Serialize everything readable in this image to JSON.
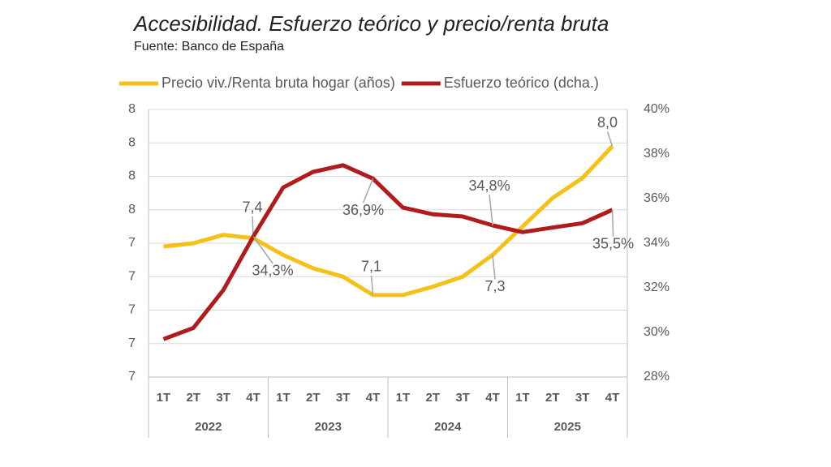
{
  "chart_data": {
    "type": "line",
    "title": "Accesibilidad. Esfuerzo teórico y precio/renta bruta",
    "subtitle": "Fuente: Banco de España",
    "categories": [
      "1T",
      "2T",
      "3T",
      "4T",
      "1T",
      "2T",
      "3T",
      "4T",
      "1T",
      "2T",
      "3T",
      "4T",
      "1T",
      "2T",
      "3T",
      "4T"
    ],
    "groups": [
      "2022",
      "2023",
      "2024",
      "2025"
    ],
    "series": [
      {
        "name": "Precio viv./Renta bruta hogar (años)",
        "color": "#f5c018",
        "values": [
          7.38,
          7.4,
          7.45,
          7.43,
          7.33,
          7.25,
          7.2,
          7.09,
          7.09,
          7.14,
          7.2,
          7.33,
          7.5,
          7.67,
          7.79,
          7.98
        ],
        "value_labels": [
          null,
          null,
          null,
          "7,4",
          null,
          null,
          null,
          "7,1",
          null,
          null,
          null,
          "7,3",
          null,
          null,
          null,
          "8,0"
        ]
      },
      {
        "name": "Esfuerzo teórico (dcha.)",
        "color": "#b01c1c",
        "axis": "y2",
        "values": [
          29.7,
          30.2,
          31.9,
          34.3,
          36.5,
          37.2,
          37.5,
          36.9,
          35.6,
          35.3,
          35.2,
          34.8,
          34.5,
          34.7,
          34.9,
          35.5
        ],
        "value_labels": [
          null,
          null,
          null,
          "34,3%",
          null,
          null,
          null,
          "36,9%",
          null,
          null,
          null,
          "34,8%",
          null,
          null,
          null,
          "35,5%"
        ]
      }
    ],
    "ylim": [
      6.6,
      8.2
    ],
    "yticks": [
      {
        "value": 6.6,
        "label": "7"
      },
      {
        "value": 6.8,
        "label": "7"
      },
      {
        "value": 7.0,
        "label": "7"
      },
      {
        "value": 7.2,
        "label": "7"
      },
      {
        "value": 7.4,
        "label": "7"
      },
      {
        "value": 7.6,
        "label": "8"
      },
      {
        "value": 7.8,
        "label": "8"
      },
      {
        "value": 8.0,
        "label": "8"
      },
      {
        "value": 8.2,
        "label": "8"
      }
    ],
    "y2lim": [
      28,
      40
    ],
    "y2ticks": [
      {
        "value": 28,
        "label": "28%"
      },
      {
        "value": 30,
        "label": "30%"
      },
      {
        "value": 32,
        "label": "32%"
      },
      {
        "value": 34,
        "label": "34%"
      },
      {
        "value": 36,
        "label": "36%"
      },
      {
        "value": 38,
        "label": "38%"
      },
      {
        "value": 40,
        "label": "40%"
      }
    ],
    "grid": true,
    "legend": "top"
  }
}
